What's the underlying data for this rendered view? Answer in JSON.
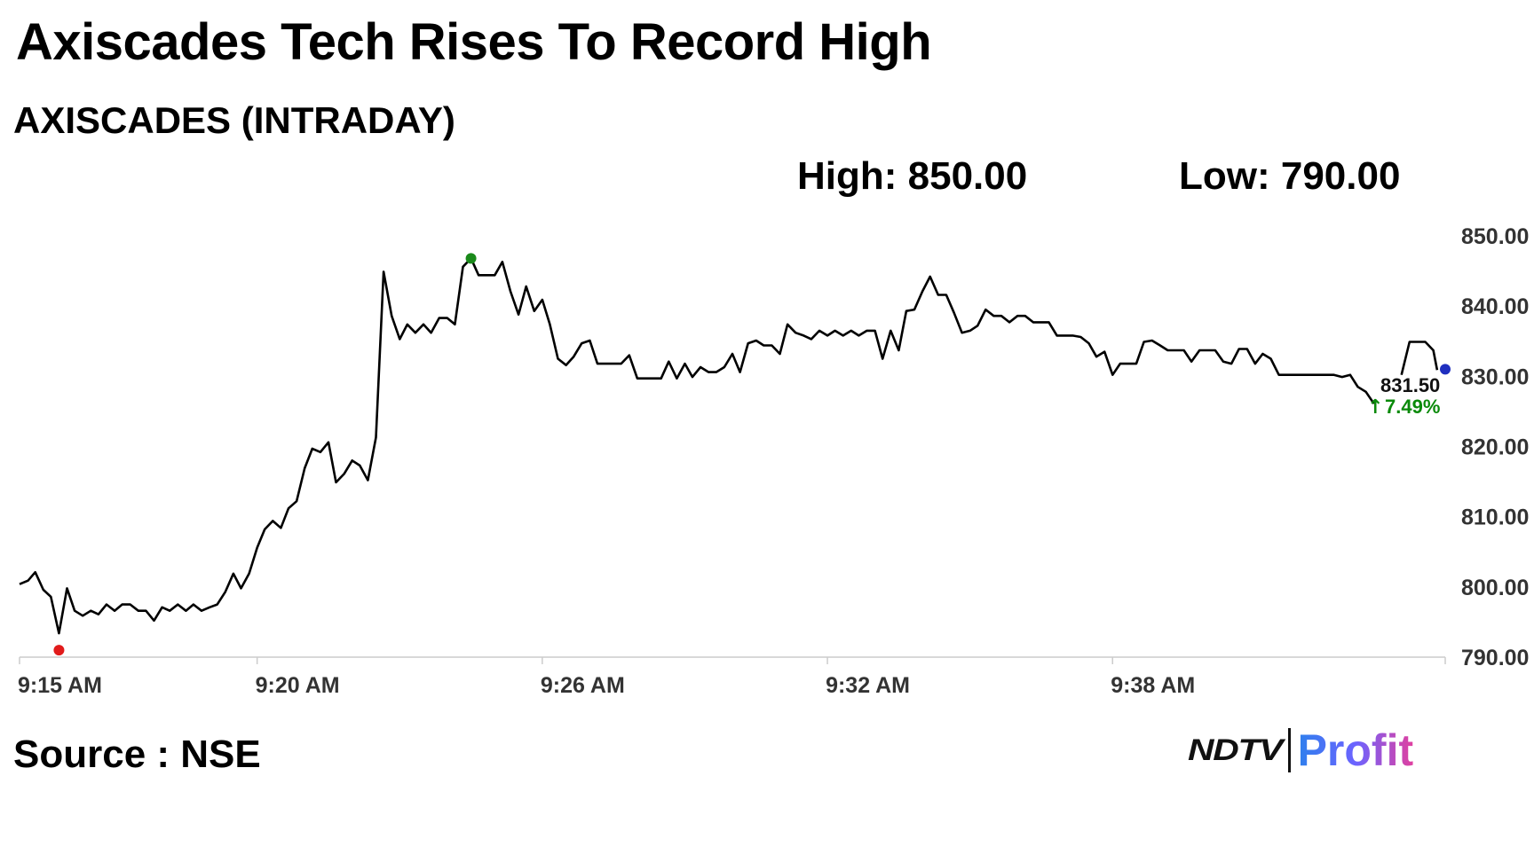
{
  "headline": "Axiscades Tech Rises To Record High",
  "subtitle": "AXISCADES (INTRADAY)",
  "high_label": "High: 850.00",
  "low_label": "Low: 790.00",
  "source": "Source : NSE",
  "logo": {
    "left": "NDTV",
    "right": "Profit"
  },
  "colors": {
    "line": "#000000",
    "low_marker": "#e11b1b",
    "high_marker": "#1a8a1a",
    "last_marker": "#1f2fbf",
    "change_text": "#0a8a0a",
    "axis": "#cccccc"
  },
  "chart_data": {
    "type": "line",
    "title": "AXISCADES (INTRADAY)",
    "xlabel": "",
    "ylabel": "",
    "xlim": [
      0,
      30
    ],
    "ylim": [
      790,
      850
    ],
    "x_ticks": [
      {
        "value": 0,
        "label": "9:15 AM"
      },
      {
        "value": 5,
        "label": "9:20 AM"
      },
      {
        "value": 11,
        "label": "9:26 AM"
      },
      {
        "value": 17,
        "label": "9:32 AM"
      },
      {
        "value": 23,
        "label": "9:38 AM"
      }
    ],
    "y_ticks": [
      {
        "value": 850,
        "label": "850.00"
      },
      {
        "value": 840,
        "label": "840.00"
      },
      {
        "value": 830,
        "label": "830.00"
      },
      {
        "value": 820,
        "label": "820.00"
      },
      {
        "value": 810,
        "label": "810.00"
      },
      {
        "value": 800,
        "label": "800.00"
      },
      {
        "value": 790,
        "label": "790.00"
      }
    ],
    "grid": false,
    "series": [
      {
        "values": [
          [
            0.0,
            800.4
          ],
          [
            0.18,
            800.9
          ],
          [
            0.33,
            802.1
          ],
          [
            0.5,
            799.6
          ],
          [
            0.66,
            798.6
          ],
          [
            0.83,
            793.4
          ],
          [
            1.0,
            799.8
          ],
          [
            1.16,
            796.6
          ],
          [
            1.33,
            795.9
          ],
          [
            1.5,
            796.6
          ],
          [
            1.66,
            796.1
          ],
          [
            1.83,
            797.5
          ],
          [
            2.0,
            796.6
          ],
          [
            2.16,
            797.5
          ],
          [
            2.33,
            797.5
          ],
          [
            2.5,
            796.6
          ],
          [
            2.66,
            796.6
          ],
          [
            2.83,
            795.2
          ],
          [
            3.0,
            797.1
          ],
          [
            3.16,
            796.6
          ],
          [
            3.33,
            797.5
          ],
          [
            3.5,
            796.6
          ],
          [
            3.66,
            797.5
          ],
          [
            3.83,
            796.6
          ],
          [
            4.0,
            797.1
          ],
          [
            4.16,
            797.5
          ],
          [
            4.33,
            799.3
          ],
          [
            4.5,
            801.9
          ],
          [
            4.66,
            799.8
          ],
          [
            4.83,
            801.9
          ],
          [
            5.0,
            805.6
          ],
          [
            5.16,
            808.2
          ],
          [
            5.33,
            809.4
          ],
          [
            5.5,
            808.4
          ],
          [
            5.66,
            811.2
          ],
          [
            5.83,
            812.2
          ],
          [
            6.0,
            816.9
          ],
          [
            6.16,
            819.7
          ],
          [
            6.33,
            819.2
          ],
          [
            6.5,
            820.6
          ],
          [
            6.66,
            814.9
          ],
          [
            6.83,
            816.1
          ],
          [
            7.0,
            818.0
          ],
          [
            7.16,
            817.3
          ],
          [
            7.33,
            815.2
          ],
          [
            7.5,
            821.3
          ],
          [
            7.66,
            844.9
          ],
          [
            7.83,
            838.6
          ],
          [
            8.0,
            835.3
          ],
          [
            8.16,
            837.4
          ],
          [
            8.33,
            836.2
          ],
          [
            8.5,
            837.4
          ],
          [
            8.66,
            836.2
          ],
          [
            8.83,
            838.3
          ],
          [
            9.0,
            838.3
          ],
          [
            9.16,
            837.4
          ],
          [
            9.33,
            845.6
          ],
          [
            9.5,
            846.8
          ],
          [
            9.66,
            844.4
          ],
          [
            9.83,
            844.4
          ],
          [
            10.0,
            844.4
          ],
          [
            10.16,
            846.3
          ],
          [
            10.33,
            842.1
          ],
          [
            10.5,
            838.8
          ],
          [
            10.66,
            842.8
          ],
          [
            10.83,
            839.3
          ],
          [
            11.0,
            840.9
          ],
          [
            11.16,
            837.4
          ],
          [
            11.33,
            832.5
          ],
          [
            11.5,
            831.6
          ],
          [
            11.66,
            832.8
          ],
          [
            11.83,
            834.7
          ],
          [
            12.0,
            835.1
          ],
          [
            12.16,
            831.8
          ],
          [
            12.33,
            831.8
          ],
          [
            12.5,
            831.8
          ],
          [
            12.66,
            831.8
          ],
          [
            12.83,
            833.0
          ],
          [
            13.0,
            829.7
          ],
          [
            13.16,
            829.7
          ],
          [
            13.33,
            829.7
          ],
          [
            13.5,
            829.7
          ],
          [
            13.66,
            832.1
          ],
          [
            13.83,
            829.7
          ],
          [
            14.0,
            831.8
          ],
          [
            14.16,
            829.9
          ],
          [
            14.33,
            831.3
          ],
          [
            14.5,
            830.6
          ],
          [
            14.66,
            830.6
          ],
          [
            14.83,
            831.3
          ],
          [
            15.0,
            833.2
          ],
          [
            15.16,
            830.6
          ],
          [
            15.33,
            834.7
          ],
          [
            15.5,
            835.1
          ],
          [
            15.66,
            834.4
          ],
          [
            15.83,
            834.4
          ],
          [
            16.0,
            833.2
          ],
          [
            16.16,
            837.4
          ],
          [
            16.33,
            836.2
          ],
          [
            16.5,
            835.8
          ],
          [
            16.66,
            835.3
          ],
          [
            16.83,
            836.5
          ],
          [
            17.0,
            835.8
          ],
          [
            17.16,
            836.5
          ],
          [
            17.33,
            835.8
          ],
          [
            17.5,
            836.5
          ],
          [
            17.66,
            835.8
          ],
          [
            17.83,
            836.5
          ],
          [
            18.0,
            836.5
          ],
          [
            18.16,
            832.5
          ],
          [
            18.33,
            836.5
          ],
          [
            18.5,
            833.7
          ],
          [
            18.66,
            839.3
          ],
          [
            18.83,
            839.5
          ],
          [
            19.0,
            842.1
          ],
          [
            19.16,
            844.2
          ],
          [
            19.33,
            841.6
          ],
          [
            19.5,
            841.6
          ],
          [
            19.66,
            839.1
          ],
          [
            19.83,
            836.2
          ],
          [
            20.0,
            836.5
          ],
          [
            20.16,
            837.2
          ],
          [
            20.33,
            839.5
          ],
          [
            20.5,
            838.6
          ],
          [
            20.66,
            838.6
          ],
          [
            20.83,
            837.7
          ],
          [
            21.0,
            838.6
          ],
          [
            21.16,
            838.6
          ],
          [
            21.33,
            837.7
          ],
          [
            21.5,
            837.7
          ],
          [
            21.66,
            837.7
          ],
          [
            21.83,
            835.8
          ],
          [
            22.0,
            835.8
          ],
          [
            22.16,
            835.8
          ],
          [
            22.33,
            835.6
          ],
          [
            22.5,
            834.7
          ],
          [
            22.66,
            832.8
          ],
          [
            22.83,
            833.5
          ],
          [
            23.0,
            830.2
          ],
          [
            23.16,
            831.8
          ],
          [
            23.33,
            831.8
          ],
          [
            23.5,
            831.8
          ],
          [
            23.66,
            834.9
          ],
          [
            23.83,
            835.1
          ],
          [
            24.0,
            834.4
          ],
          [
            24.16,
            833.7
          ],
          [
            24.33,
            833.7
          ],
          [
            24.5,
            833.7
          ],
          [
            24.66,
            832.1
          ],
          [
            24.83,
            833.7
          ],
          [
            25.0,
            833.7
          ],
          [
            25.16,
            833.7
          ],
          [
            25.33,
            832.1
          ],
          [
            25.5,
            831.8
          ],
          [
            25.66,
            833.9
          ],
          [
            25.83,
            833.9
          ],
          [
            26.0,
            831.8
          ],
          [
            26.16,
            833.2
          ],
          [
            26.33,
            832.5
          ],
          [
            26.5,
            830.2
          ],
          [
            26.66,
            830.2
          ],
          [
            26.83,
            830.2
          ],
          [
            27.0,
            830.2
          ],
          [
            27.16,
            830.2
          ],
          [
            27.33,
            830.2
          ],
          [
            27.5,
            830.2
          ],
          [
            27.66,
            830.2
          ],
          [
            27.83,
            829.9
          ],
          [
            28.0,
            830.2
          ],
          [
            28.16,
            828.5
          ],
          [
            28.33,
            827.8
          ],
          [
            28.5,
            826.1
          ]
        ]
      },
      {
        "values": [
          [
            29.08,
            830.2
          ],
          [
            29.25,
            834.9
          ],
          [
            29.41,
            834.9
          ],
          [
            29.58,
            834.9
          ],
          [
            29.75,
            833.7
          ],
          [
            29.83,
            830.9
          ]
        ]
      }
    ],
    "markers": [
      {
        "type": "low",
        "x": 0.83,
        "y": 791.0
      },
      {
        "type": "high",
        "x": 9.5,
        "y": 846.8
      },
      {
        "type": "last",
        "x": 30.0,
        "y": 831.0
      }
    ],
    "annotations": {
      "last_price": "831.50",
      "change_pct": "7.49%",
      "change_arrow": "↑"
    }
  }
}
